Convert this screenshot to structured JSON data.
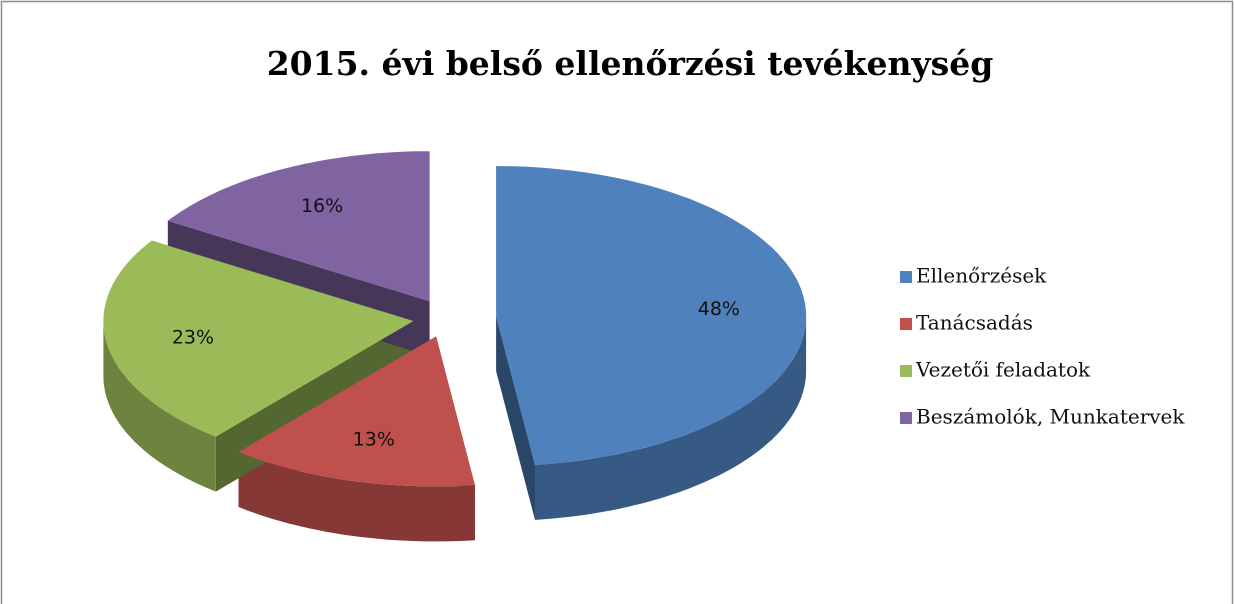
{
  "chart_data": {
    "type": "pie3d",
    "title": "2015. évi belső ellenőrzési tevékenység",
    "categories": [
      "Ellenőrzések",
      "Tanácsadás",
      "Vezetői feladatok",
      "Beszámolók, Munkatervek"
    ],
    "values": [
      48,
      13,
      23,
      16
    ],
    "value_labels": [
      "48%",
      "13%",
      "23%",
      "16%"
    ],
    "colors": [
      "#4f81bd",
      "#c0504d",
      "#9bbb59",
      "#8064a2"
    ],
    "legend": "right"
  }
}
